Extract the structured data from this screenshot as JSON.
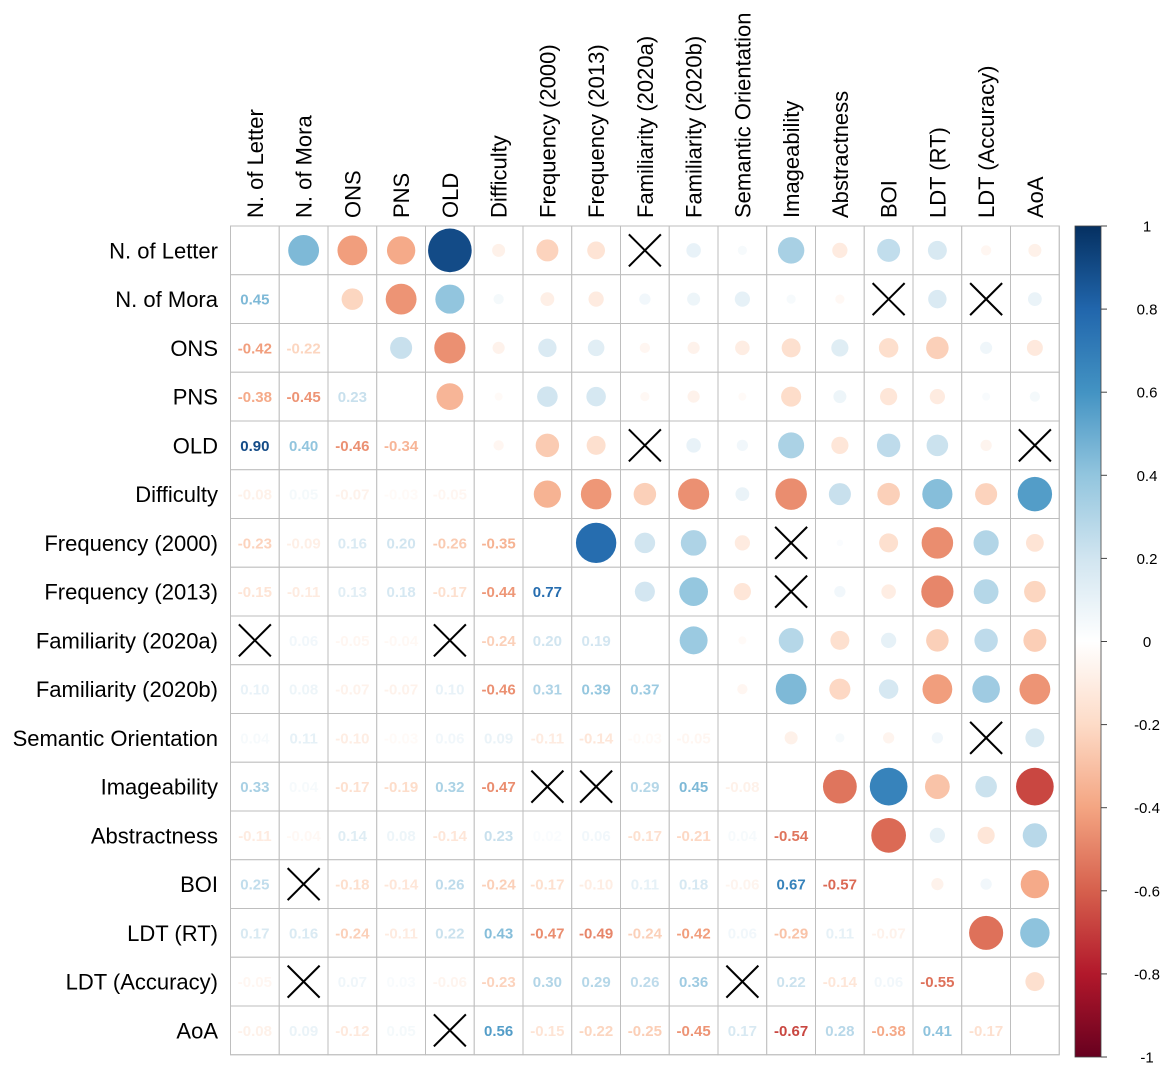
{
  "chart_data": {
    "type": "heatmap",
    "variables": [
      "N. of Letter",
      "N. of Mora",
      "ONS",
      "PNS",
      "OLD",
      "Difficulty",
      "Frequency (2000)",
      "Frequency (2013)",
      "Familiarity (2020a)",
      "Familiarity (2020b)",
      "Semantic Orientation",
      "Imageability",
      "Abstractness",
      "BOI",
      "LDT (RT)",
      "LDT (Accuracy)",
      "AoA"
    ],
    "correlations": [
      [],
      [
        0.45
      ],
      [
        -0.42,
        -0.22
      ],
      [
        -0.38,
        -0.45,
        0.23
      ],
      [
        0.9,
        0.4,
        -0.46,
        -0.34
      ],
      [
        -0.08,
        0.05,
        -0.07,
        -0.03,
        -0.05
      ],
      [
        -0.23,
        -0.09,
        0.16,
        0.2,
        -0.26,
        -0.35
      ],
      [
        -0.15,
        -0.11,
        0.13,
        0.18,
        -0.17,
        -0.44,
        0.77
      ],
      [
        null,
        0.06,
        -0.05,
        -0.04,
        null,
        -0.24,
        0.2,
        0.19
      ],
      [
        0.1,
        0.08,
        -0.07,
        -0.07,
        0.1,
        -0.46,
        0.31,
        0.39,
        0.37
      ],
      [
        0.04,
        0.11,
        -0.1,
        -0.03,
        0.06,
        0.09,
        -0.11,
        -0.14,
        -0.03,
        -0.05
      ],
      [
        0.33,
        0.04,
        -0.17,
        -0.19,
        0.32,
        -0.47,
        null,
        null,
        0.29,
        0.45,
        -0.08
      ],
      [
        -0.11,
        -0.04,
        0.14,
        0.08,
        -0.14,
        0.23,
        0.02,
        0.06,
        -0.17,
        -0.21,
        0.04,
        -0.54
      ],
      [
        0.25,
        null,
        -0.18,
        -0.14,
        0.26,
        -0.24,
        -0.17,
        -0.1,
        0.11,
        0.18,
        -0.06,
        0.67,
        -0.57
      ],
      [
        0.17,
        0.16,
        -0.24,
        -0.11,
        0.22,
        0.43,
        -0.47,
        -0.49,
        -0.24,
        -0.42,
        0.06,
        -0.29,
        0.11,
        -0.07
      ],
      [
        -0.05,
        null,
        0.07,
        0.03,
        -0.06,
        -0.23,
        0.3,
        0.29,
        0.26,
        0.36,
        null,
        0.22,
        -0.14,
        0.06,
        -0.55
      ],
      [
        -0.08,
        0.09,
        -0.12,
        0.05,
        null,
        0.56,
        -0.15,
        -0.22,
        -0.25,
        -0.45,
        0.17,
        -0.67,
        0.28,
        -0.38,
        0.41,
        -0.17
      ]
    ],
    "colorbar": {
      "range": [
        -1,
        1
      ],
      "ticks": [
        1,
        0.8,
        0.6,
        0.4,
        0.2,
        0,
        -0.2,
        -0.4,
        -0.6,
        -0.8,
        -1
      ],
      "colors": [
        "#67001F",
        "#B2182B",
        "#D6604D",
        "#F4A582",
        "#FDDBC7",
        "#FFFFFF",
        "#D1E5F0",
        "#92C5DE",
        "#4393C3",
        "#2166AC",
        "#053061"
      ]
    }
  }
}
